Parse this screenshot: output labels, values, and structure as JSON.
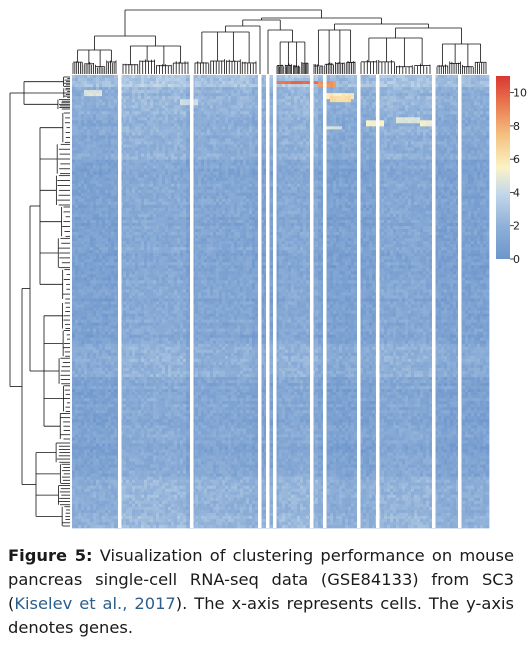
{
  "chart_data": {
    "type": "heatmap",
    "title": "",
    "xlabel": "",
    "ylabel": "",
    "colorbar": {
      "ticks": [
        0,
        2,
        4,
        6,
        8,
        10
      ],
      "range": [
        0,
        11
      ],
      "colors": [
        "#6e96cc",
        "#8fb0d8",
        "#c4d8ea",
        "#fbf3c6",
        "#f4c07e",
        "#ea7b52",
        "#d9382f"
      ]
    },
    "dendrograms": {
      "column": true,
      "row": true
    },
    "cluster_separators": 11
  },
  "caption": {
    "label": "Figure 5:",
    "text_before": "Visualization of clustering performance on mouse pancreas single-cell RNA-seq data (GSE84133) from SC3 (",
    "citation": "Kiselev et al., 2017",
    "text_after": "). The x-axis represents cells. The y-axis denotes genes."
  }
}
